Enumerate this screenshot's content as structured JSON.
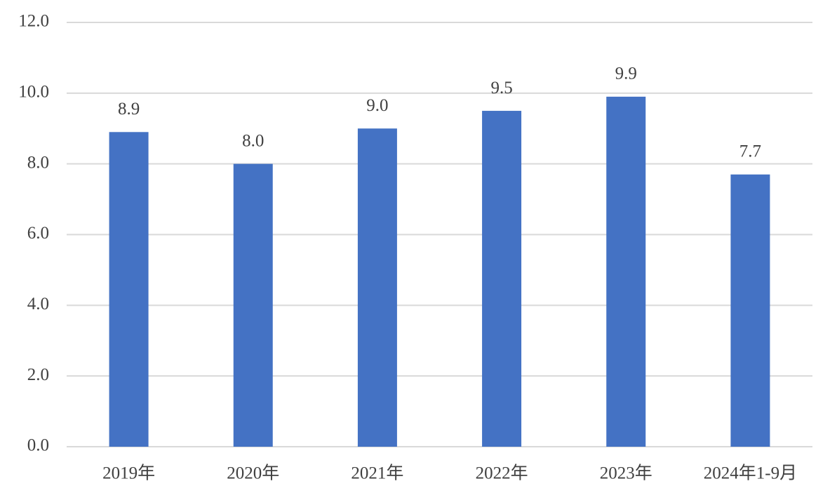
{
  "chart_data": {
    "type": "bar",
    "categories": [
      "2019年",
      "2020年",
      "2021年",
      "2022年",
      "2023年",
      "2024年1-9月"
    ],
    "values": [
      8.9,
      8.0,
      9.0,
      9.5,
      9.9,
      7.7
    ],
    "value_labels": [
      "8.9",
      "8.0",
      "9.0",
      "9.5",
      "9.9",
      "7.7"
    ],
    "color": "#4472c4",
    "ylim": [
      0,
      12
    ],
    "yticks": [
      {
        "value": 0,
        "label": "0.0"
      },
      {
        "value": 2,
        "label": "2.0"
      },
      {
        "value": 4,
        "label": "4.0"
      },
      {
        "value": 6,
        "label": "6.0"
      },
      {
        "value": 8,
        "label": "8.0"
      },
      {
        "value": 10,
        "label": "10.0"
      },
      {
        "value": 12,
        "label": "12.0"
      }
    ],
    "grid": true
  }
}
